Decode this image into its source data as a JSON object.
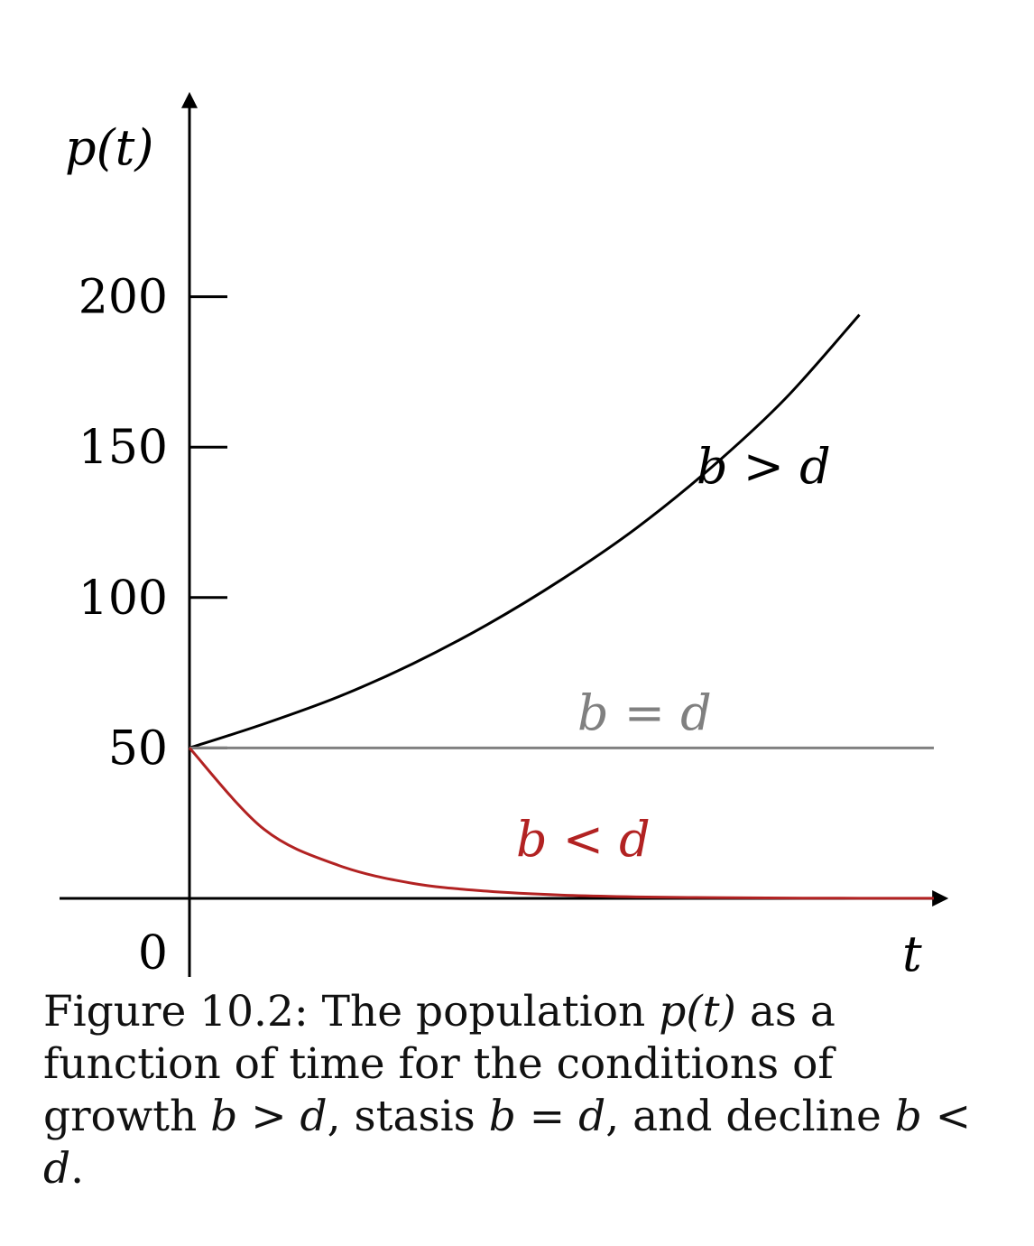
{
  "chart_data": {
    "type": "line",
    "xlabel": "t",
    "ylabel": "p(t)",
    "x_range": [
      0,
      10
    ],
    "ylim": [
      0,
      250
    ],
    "y_ticks": [
      0,
      50,
      100,
      150,
      200
    ],
    "y_tick_labels": [
      "0",
      "50",
      "100",
      "150",
      "200"
    ],
    "grid": false,
    "series": [
      {
        "name": "b > d",
        "color": "#000000",
        "x": [
          0,
          1,
          2,
          3,
          4,
          5,
          6,
          7,
          8,
          9
        ],
        "y": [
          50,
          58,
          67,
          78,
          91,
          106,
          123,
          143,
          166,
          194
        ]
      },
      {
        "name": "b = d",
        "color": "#808080",
        "x": [
          0,
          1,
          2,
          3,
          4,
          5,
          6,
          7,
          8,
          9,
          10
        ],
        "y": [
          50,
          50,
          50,
          50,
          50,
          50,
          50,
          50,
          50,
          50,
          50
        ]
      },
      {
        "name": "b < d",
        "color": "#b22222",
        "x": [
          0,
          1,
          2,
          3,
          4,
          5,
          6,
          7,
          8,
          9,
          10
        ],
        "y": [
          50,
          23,
          11,
          5,
          2.4,
          1.1,
          0.5,
          0.25,
          0.1,
          0.05,
          0.02
        ]
      }
    ]
  },
  "caption": {
    "prefix": "Figure 10.2: The population ",
    "m1": "p(t)",
    "t2": " as a function of time for the conditions of growth ",
    "m2": "b > d",
    "t3": ", stasis ",
    "m3": "b = d",
    "t4": ", and decline ",
    "m4": "b < d",
    "t5": "."
  }
}
